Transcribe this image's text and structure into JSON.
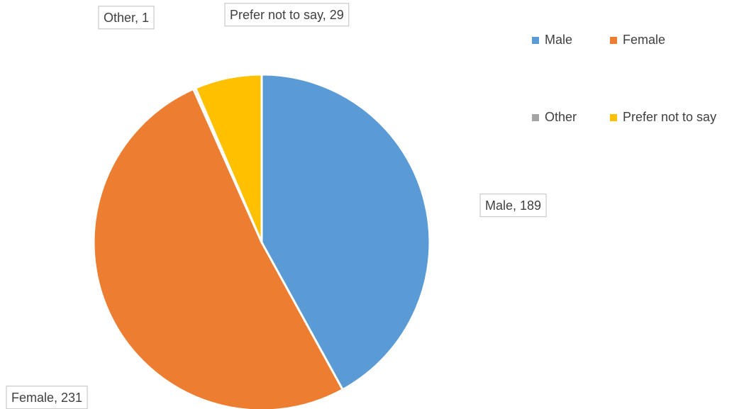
{
  "chart_data": {
    "type": "pie",
    "categories": [
      "Male",
      "Female",
      "Other",
      "Prefer not to say"
    ],
    "values": [
      189,
      231,
      1,
      29
    ],
    "value_labels": [
      "Male, 189",
      "Female, 231",
      "Other, 1",
      "Prefer not to say, 29"
    ],
    "colors": [
      "#5b9bd5",
      "#ed7d31",
      "#a5a5a5",
      "#ffc000"
    ],
    "legend": "top-right"
  }
}
